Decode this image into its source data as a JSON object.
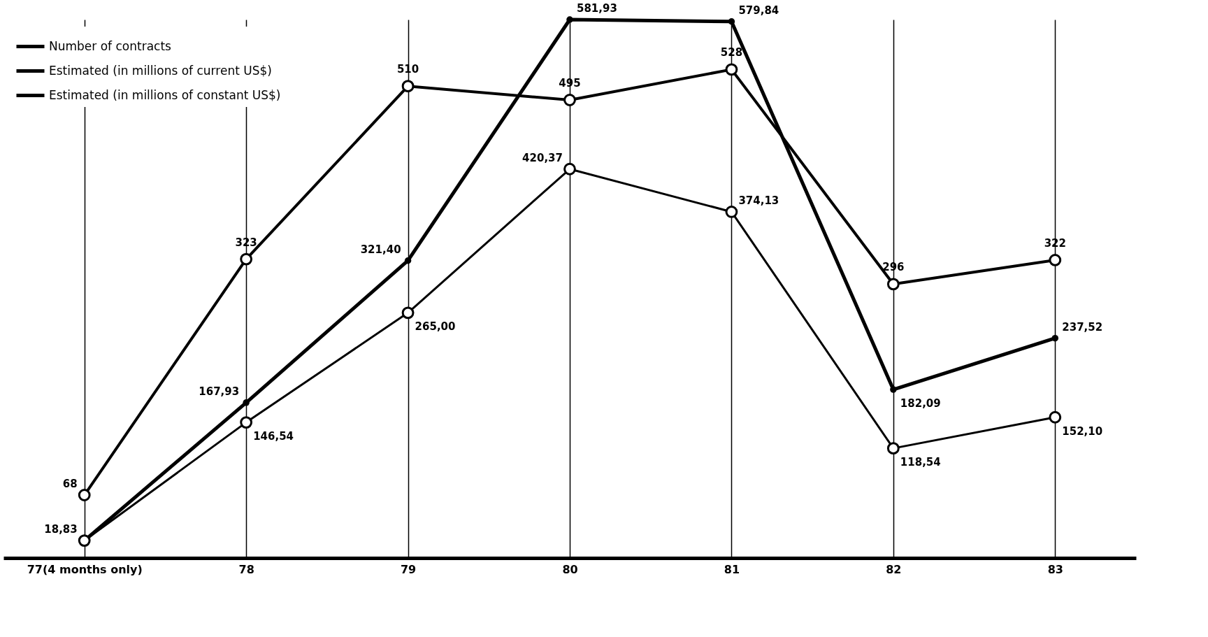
{
  "chart_data": {
    "type": "line",
    "categories": [
      "77(4 months only)",
      "78",
      "79",
      "80",
      "81",
      "82",
      "83"
    ],
    "series": [
      {
        "name": "Number of contracts",
        "color": "#000000",
        "marker": "circle",
        "values": [
          68,
          323,
          510,
          495,
          528,
          296,
          322
        ]
      },
      {
        "name": "Estimated (in millions of current US$)",
        "color": "#000000",
        "marker": "circle",
        "values": [
          18.83,
          167.93,
          321.4,
          581.93,
          579.84,
          182.09,
          237.52
        ],
        "value_labels": [
          "18,83",
          "167,93",
          "321,40",
          "581,93",
          "579,84",
          "182,09",
          "237,52"
        ]
      },
      {
        "name": "Estimated (in millions of constant US$)",
        "color": "#000000",
        "marker": "circle",
        "values": [
          18.83,
          146.54,
          265.0,
          420.37,
          374.13,
          118.54,
          152.1
        ],
        "value_labels": [
          null,
          "146,54",
          "265,00",
          "420,37",
          "374,13",
          "118,54",
          "152,10"
        ]
      }
    ],
    "data_labels": true,
    "grid": "x",
    "legend": "top left",
    "line_style": "solid"
  }
}
